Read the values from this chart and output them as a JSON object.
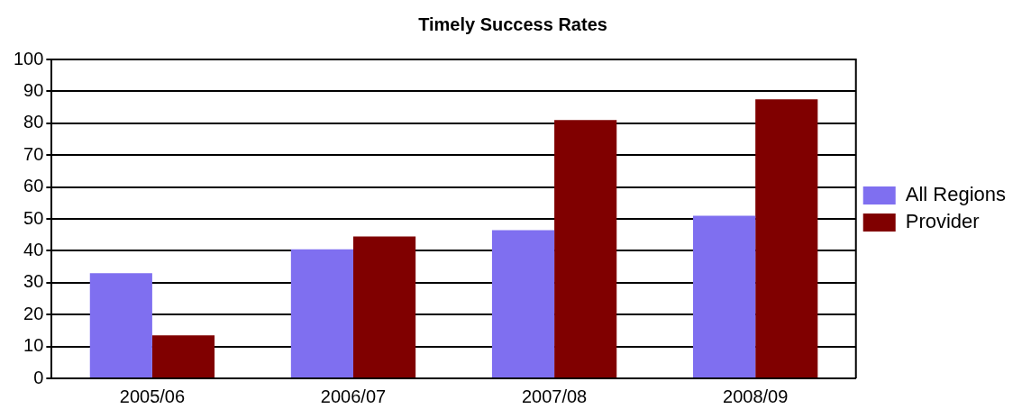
{
  "chart_data": {
    "type": "bar",
    "title": "Timely Success Rates",
    "categories": [
      "2005/06",
      "2006/07",
      "2007/08",
      "2008/09"
    ],
    "series": [
      {
        "name": "All Regions",
        "color": "#7f6ff0",
        "values": [
          33,
          40.5,
          46.5,
          51
        ]
      },
      {
        "name": "Provider",
        "color": "#800000",
        "values": [
          13.5,
          44.5,
          81,
          87.5
        ]
      }
    ],
    "ylim": [
      0,
      100
    ],
    "yticks": [
      0,
      10,
      20,
      30,
      40,
      50,
      60,
      70,
      80,
      90,
      100
    ],
    "grid": "y",
    "legend": "right"
  }
}
